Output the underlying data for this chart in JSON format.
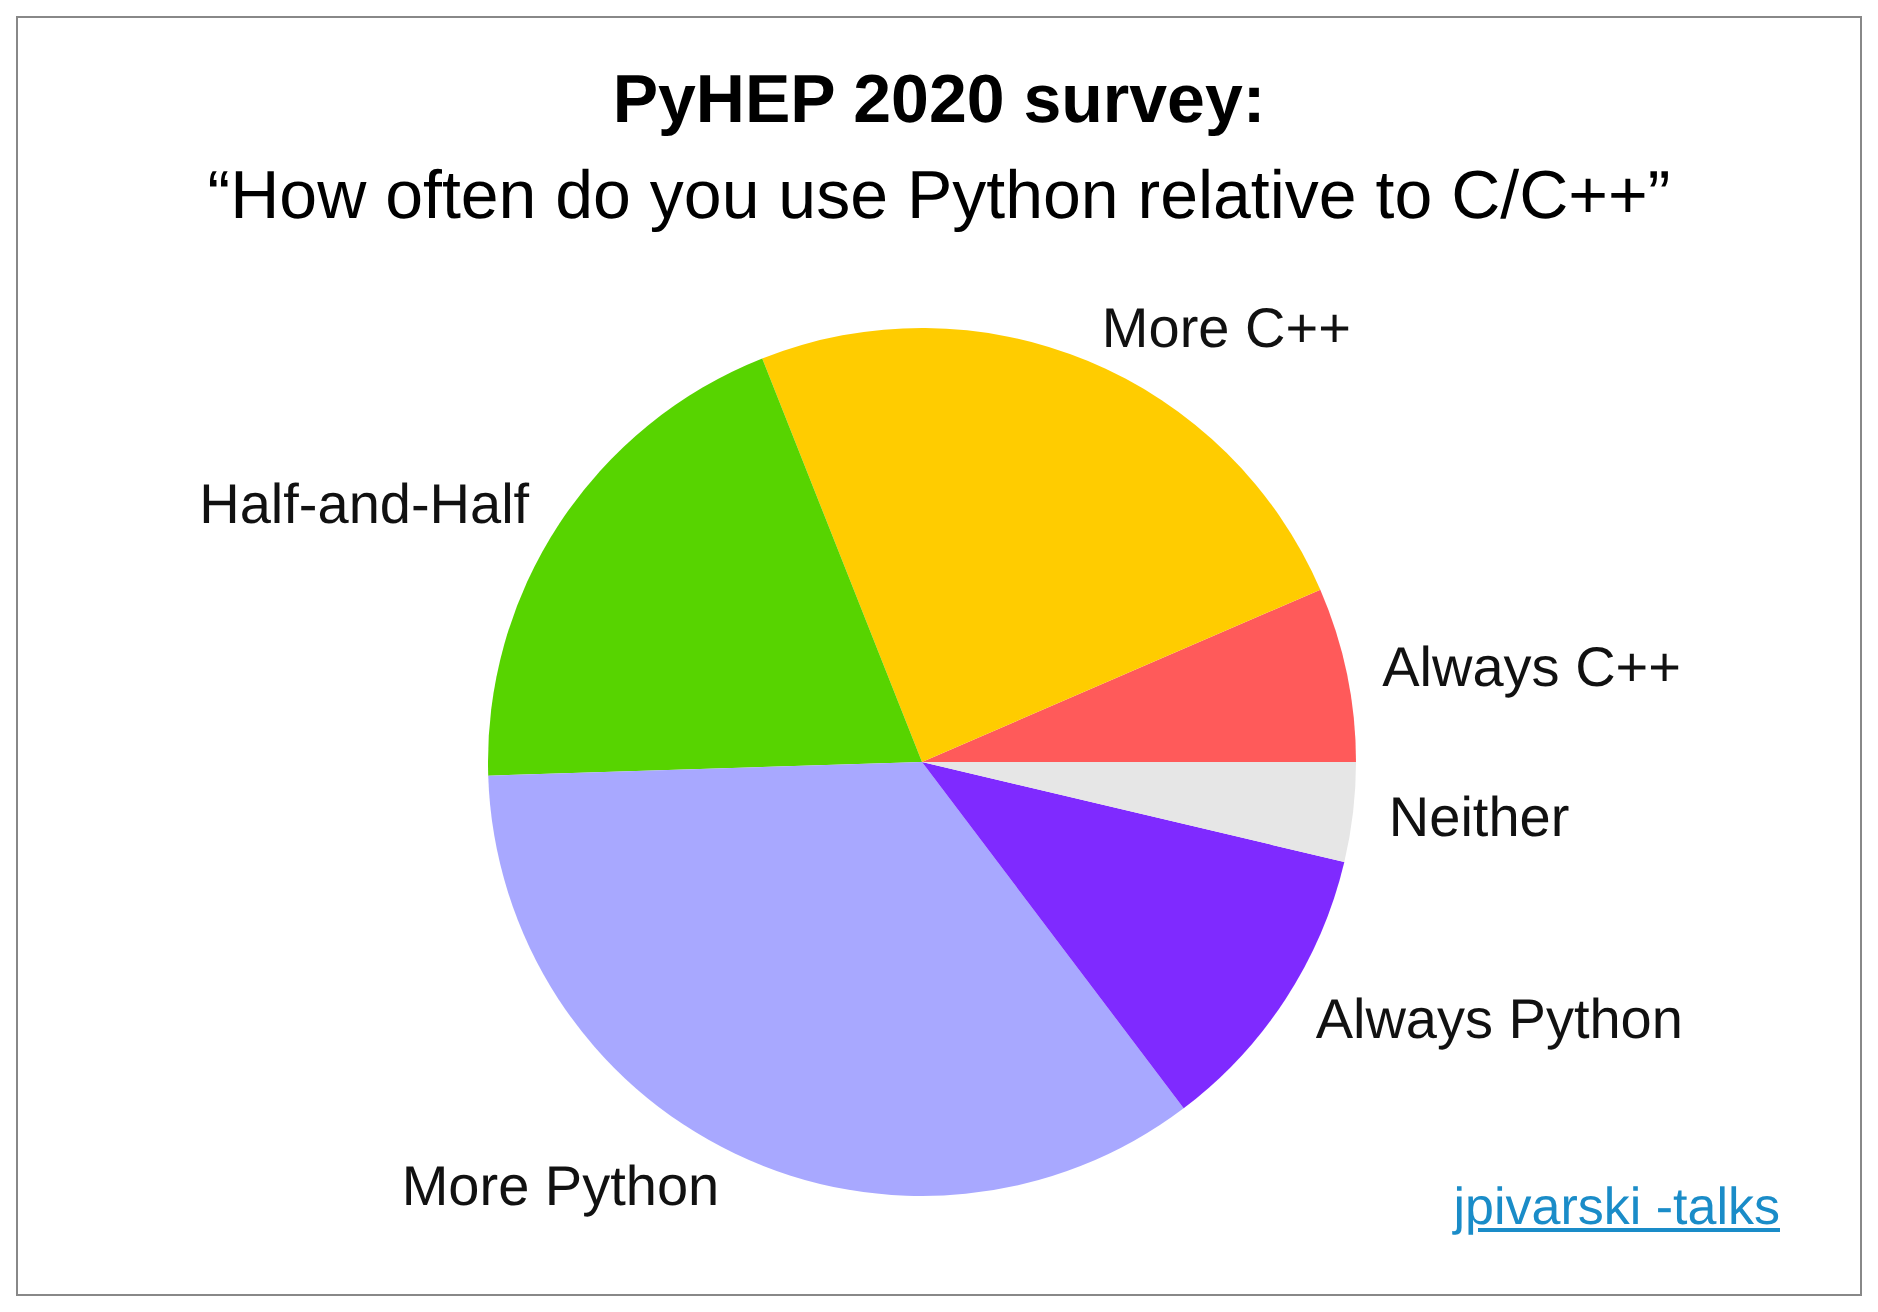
{
  "chart_data": {
    "type": "pie",
    "title": "PyHEP 2020 survey:",
    "subtitle": "“How often do you use Python relative to C/C++”",
    "categories": [
      "Always C++",
      "More C++",
      "Half-and-Half",
      "More Python",
      "Always Python",
      "Neither"
    ],
    "values": [
      6.5,
      24.5,
      19.5,
      34.8,
      11.0,
      3.7
    ],
    "colors": [
      "#ff5a5a",
      "#ffcc00",
      "#57d400",
      "#a8a8ff",
      "#7f2aff",
      "#e6e6e6"
    ],
    "annotations": [
      "jpivarski -talks"
    ],
    "legend": false
  }
}
